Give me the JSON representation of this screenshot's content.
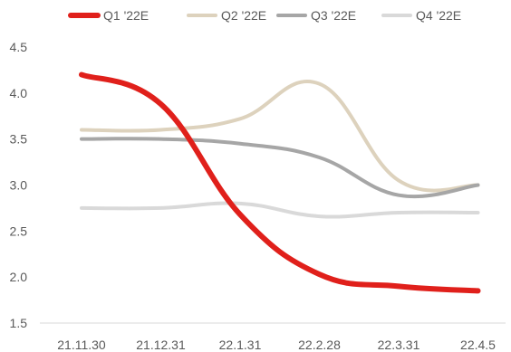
{
  "chart_data": {
    "type": "line",
    "categories": [
      "21.11.30",
      "21.12.31",
      "22.1.31",
      "22.2.28",
      "22.3.31",
      "22.4.5"
    ],
    "ylim": [
      1.5,
      4.5
    ],
    "yticks": [
      "1.5",
      "2.0",
      "2.5",
      "3.0",
      "3.5",
      "4.0",
      "4.5"
    ],
    "grid": false,
    "legend_position": "top",
    "series": [
      {
        "name": "Q1 '22E",
        "color": "#e0201b",
        "values": [
          4.2,
          3.88,
          2.68,
          2.03,
          1.9,
          1.85
        ]
      },
      {
        "name": "Q2 '22E",
        "color": "#ddd2bd",
        "values": [
          3.6,
          3.6,
          3.72,
          4.1,
          3.05,
          3.0
        ]
      },
      {
        "name": "Q3 '22E",
        "color": "#a6a6a6",
        "values": [
          3.5,
          3.5,
          3.45,
          3.3,
          2.89,
          3.0
        ]
      },
      {
        "name": "Q4 '22E",
        "color": "#d9d9d9",
        "values": [
          2.75,
          2.75,
          2.8,
          2.66,
          2.7,
          2.7
        ]
      }
    ]
  }
}
